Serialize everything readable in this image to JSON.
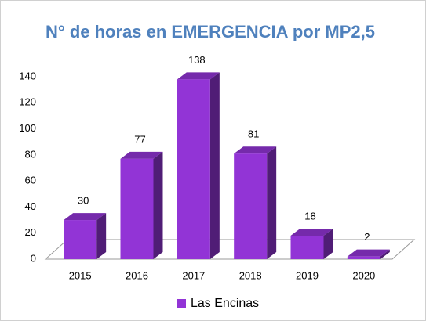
{
  "chart_data": {
    "type": "bar3d",
    "title": "N° de horas en EMERGENCIA por MP2,5",
    "categories": [
      "2015",
      "2016",
      "2017",
      "2018",
      "2019",
      "2020"
    ],
    "series": [
      {
        "name": "Las Encinas",
        "color": "#9234d6",
        "values": [
          30,
          77,
          138,
          81,
          18,
          2
        ]
      }
    ],
    "ylim": [
      0,
      140
    ],
    "yticks": [
      0,
      20,
      40,
      60,
      80,
      100,
      120,
      140
    ],
    "legend": "bottom"
  }
}
